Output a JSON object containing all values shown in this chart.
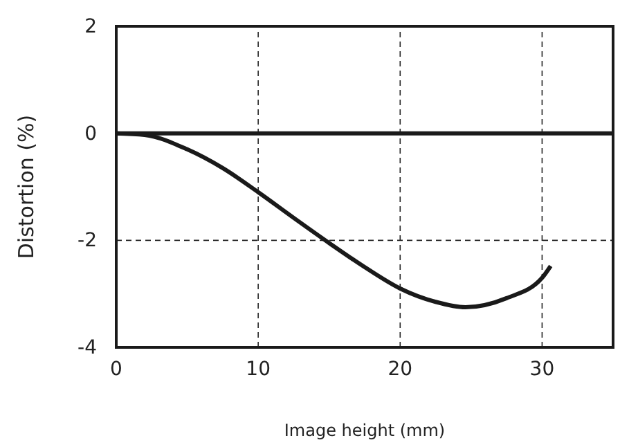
{
  "chart_data": {
    "type": "line",
    "xlabel": "Image height (mm)",
    "ylabel": "Distortion (%)",
    "xlim": [
      0,
      35
    ],
    "xticks": [
      0,
      10,
      20,
      30
    ],
    "ylim": [
      -4,
      2
    ],
    "yticks": [
      -4,
      -2,
      0,
      2
    ],
    "grid": true,
    "marker": "none",
    "line_style": "solid",
    "series": [
      {
        "color": "#1a1a1a",
        "x": [
          0,
          35
        ],
        "values": [
          0,
          0
        ]
      },
      {
        "color": "#1a1a1a",
        "x": [
          0,
          2,
          5,
          7.5,
          10,
          12.5,
          15,
          17.5,
          20,
          22.5,
          24.6,
          27.5,
          30,
          30.6
        ],
        "values": [
          0,
          -0.03,
          -0.3,
          -0.65,
          -1.1,
          -1.58,
          -2.05,
          -2.5,
          -2.9,
          -3.15,
          -3.25,
          -3.08,
          -2.7,
          -2.48
        ]
      }
    ]
  }
}
